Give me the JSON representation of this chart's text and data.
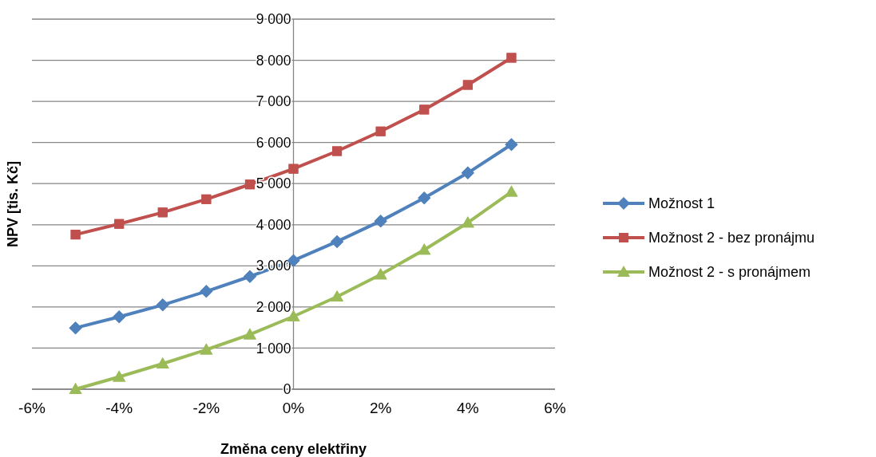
{
  "chart_data": {
    "type": "line",
    "xlabel": "Změna ceny elektřiny",
    "ylabel": "NPV [tis. Kč]",
    "x": [
      -5,
      -4,
      -3,
      -2,
      -1,
      0,
      1,
      2,
      3,
      4,
      5
    ],
    "series": [
      {
        "name": "Možnost 1",
        "color": "#4f81bd",
        "marker": "diamond",
        "values": [
          1490,
          1760,
          2050,
          2380,
          2740,
          3130,
          3590,
          4090,
          4650,
          5260,
          5950
        ]
      },
      {
        "name": "Možnost 2 - bez pronájmu",
        "color": "#c0504d",
        "marker": "square",
        "values": [
          3760,
          4020,
          4300,
          4620,
          4980,
          5360,
          5790,
          6270,
          6800,
          7400,
          8060
        ]
      },
      {
        "name": "Možnost 2 - s pronájmem",
        "color": "#9bbb59",
        "marker": "triangle",
        "values": [
          0,
          300,
          620,
          960,
          1330,
          1770,
          2250,
          2790,
          3390,
          4050,
          4800
        ]
      }
    ],
    "xlim": [
      -6,
      6
    ],
    "xticks": [
      {
        "value": -6,
        "label": "-6%"
      },
      {
        "value": -4,
        "label": "-4%"
      },
      {
        "value": -2,
        "label": "-2%"
      },
      {
        "value": 0,
        "label": "0%"
      },
      {
        "value": 2,
        "label": "2%"
      },
      {
        "value": 4,
        "label": "4%"
      },
      {
        "value": 6,
        "label": "6%"
      }
    ],
    "ylim": [
      0,
      9000
    ],
    "yticks": [
      {
        "value": 0,
        "label": "0"
      },
      {
        "value": 1000,
        "label": "1 000"
      },
      {
        "value": 2000,
        "label": "2 000"
      },
      {
        "value": 3000,
        "label": "3 000"
      },
      {
        "value": 4000,
        "label": "4 000"
      },
      {
        "value": 5000,
        "label": "5 000"
      },
      {
        "value": 6000,
        "label": "6 000"
      },
      {
        "value": 7000,
        "label": "7 000"
      },
      {
        "value": 8000,
        "label": "8 000"
      },
      {
        "value": 9000,
        "label": "9 000"
      }
    ],
    "grid": "y",
    "legend": "right",
    "line_style": "solid"
  }
}
